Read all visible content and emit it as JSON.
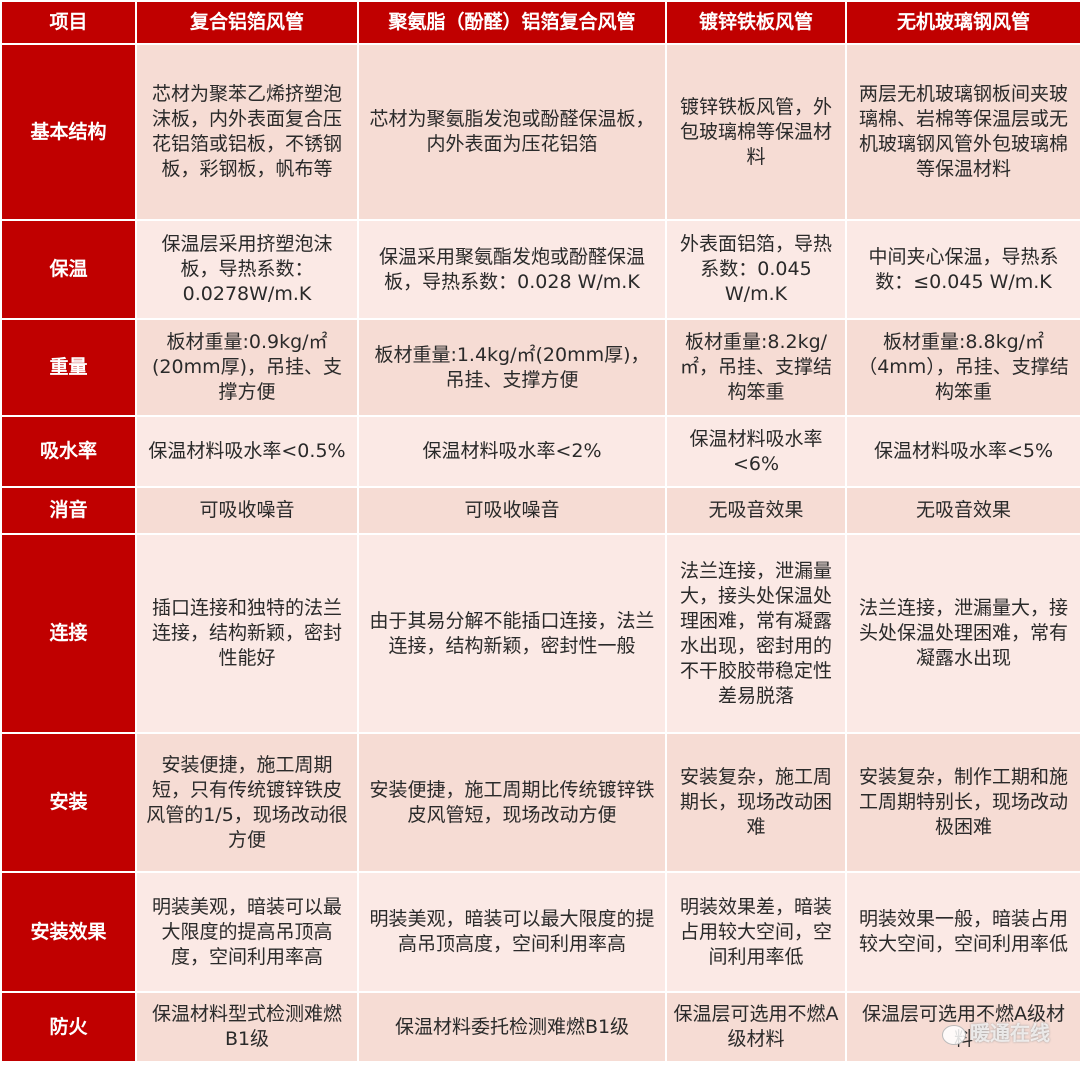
{
  "headers": [
    "项目",
    "复合铝箔风管",
    "聚氨脂（酚醛）铝箔复合风管",
    "镀锌铁板风管",
    "无机玻璃钢风管"
  ],
  "rows": [
    {
      "label": "基本结构",
      "cells": [
        "芯材为聚苯乙烯挤塑泡沫板，内外表面复合压花铝箔或铝板，不锈钢板，彩钢板，帆布等",
        "芯材为聚氨脂发泡或酚醛保温板，内外表面为压花铝箔",
        "镀锌铁板风管，外包玻璃棉等保温材料",
        "两层无机玻璃钢板间夹玻璃棉、岩棉等保温层或无机玻璃钢风管外包玻璃棉等保温材料"
      ]
    },
    {
      "label": "保温",
      "cells": [
        "保温层采用挤塑泡沫板，导热系数：0.0278W/m.K",
        "保温采用聚氨酯发炮或酚醛保温板，导热系数：0.028 W/m.K",
        "外表面铝箔，导热系数：0.045 W/m.K",
        "中间夹心保温，导热系数：≤0.045 W/m.K"
      ]
    },
    {
      "label": "重量",
      "cells": [
        "板材重量:0.9kg/㎡(20mm厚)，吊挂、支撑方便",
        "板材重量:1.4kg/㎡(20mm厚)，吊挂、支撑方便",
        "板材重量:8.2kg/㎡，吊挂、支撑结构笨重",
        "板材重量:8.8kg/㎡（4mm），吊挂、支撑结构笨重"
      ]
    },
    {
      "label": "吸水率",
      "cells": [
        "保温材料吸水率<0.5%",
        "保温材料吸水率<2%",
        "保温材料吸水率<6%",
        "保温材料吸水率<5%"
      ]
    },
    {
      "label": "消音",
      "cells": [
        "可吸收噪音",
        "可吸收噪音",
        "无吸音效果",
        "无吸音效果"
      ]
    },
    {
      "label": "连接",
      "cells": [
        "插口连接和独特的法兰连接，结构新颖，密封性能好",
        "由于其易分解不能插口连接，法兰连接，结构新颖，密封性一般",
        "法兰连接，泄漏量大，接头处保温处理困难，常有凝露水出现，密封用的不干胶胶带稳定性差易脱落",
        "法兰连接，泄漏量大，接头处保温处理困难，常有凝露水出现"
      ]
    },
    {
      "label": "安装",
      "cells": [
        "安装便捷，施工周期短，只有传统镀锌铁皮风管的1/5，现场改动很方便",
        "安装便捷，施工周期比传统镀锌铁皮风管短，现场改动方便",
        "安装复杂，施工周期长，现场改动困难",
        "安装复杂，制作工期和施工周期特别长，现场改动极困难"
      ]
    },
    {
      "label": "安装效果",
      "cells": [
        "明装美观，暗装可以最大限度的提高吊顶高度，空间利用率高",
        "明装美观，暗装可以最大限度的提高吊顶高度，空间利用率高",
        "明装效果差，暗装占用较大空间，空间利用率低",
        "明装效果一般，暗装占用较大空间，空间利用率低"
      ]
    },
    {
      "label": "防火",
      "cells": [
        "保温材料型式检测难燃B1级",
        "保温材料委托检测难燃B1级",
        "保温层可选用不燃A级材料",
        "保温层可选用不燃A级材料"
      ]
    }
  ],
  "watermark": "暖通在线",
  "colors": {
    "header": "#c00000",
    "row_dark": "#f6dcd4",
    "row_light": "#fbe9e5"
  }
}
